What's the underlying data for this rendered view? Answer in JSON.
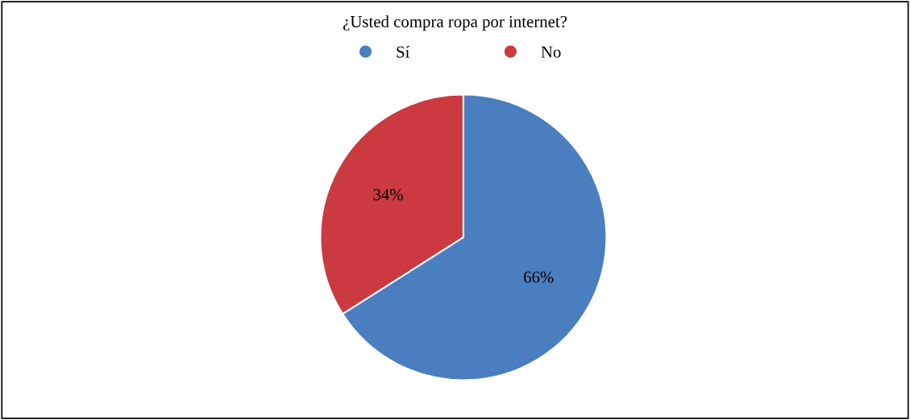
{
  "chart_data": {
    "type": "pie",
    "title": "¿Usted compra ropa por internet?",
    "categories": [
      "Sí",
      "No"
    ],
    "values": [
      66,
      34
    ],
    "colors": [
      "#4a7ebf",
      "#cb3a40"
    ],
    "value_labels": [
      "66%",
      "34%"
    ],
    "legend": "top"
  }
}
